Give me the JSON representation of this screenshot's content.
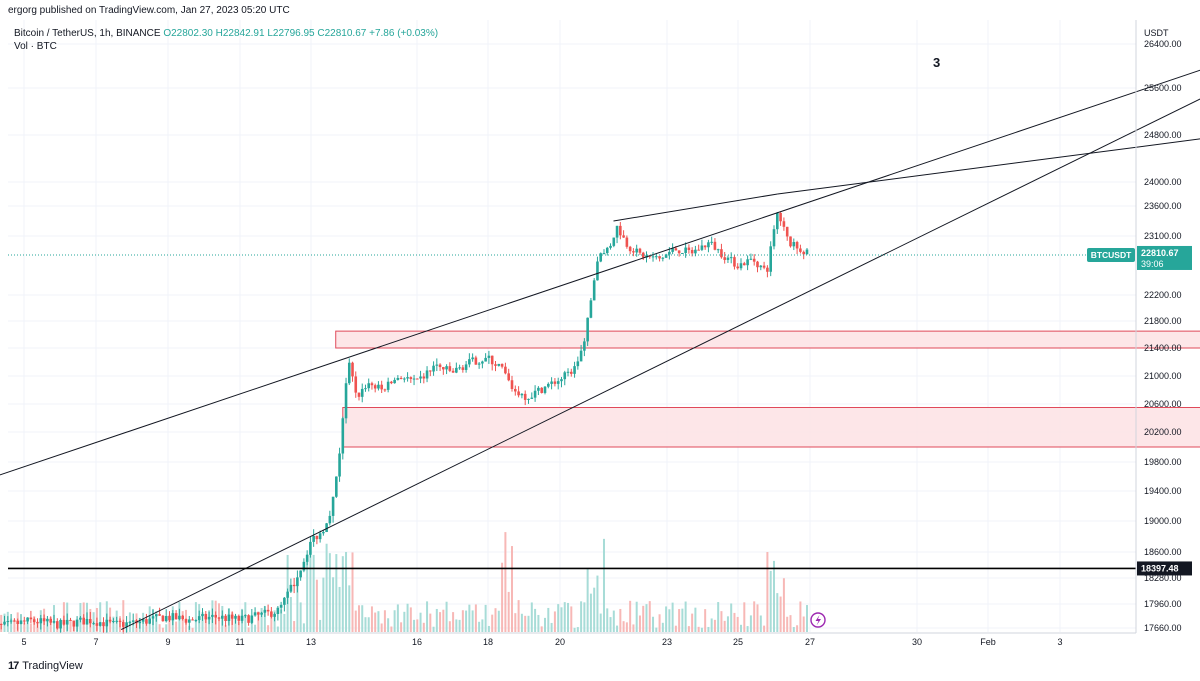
{
  "header": {
    "published": "ergorg published on TradingView.com, Jan 27, 2023 05:20 UTC",
    "symbol": "Bitcoin / TetherUS, 1h, BINANCE",
    "open": "O22802.30",
    "high": "H22842.91",
    "low": "L22796.95",
    "close": "C22810.67",
    "change": "+7.86 (+0.03%)",
    "volume_label": "Vol · BTC",
    "currency": "USDT"
  },
  "annotations": {
    "wave_label": "3"
  },
  "footer": {
    "brand": "TradingView"
  },
  "colors": {
    "up": "#26a69a",
    "down": "#ef5350",
    "zone_fill": "#fde2e4",
    "zone_border": "#e0495a",
    "label_bg": "#26a69a",
    "hline": "#000000"
  },
  "chart_data": {
    "type": "candlestick",
    "symbol_tag": "BTCUSDT",
    "last_price": "22810.67",
    "countdown": "39:06",
    "support_label": "18397.48",
    "y_ticks": [
      "26400.00",
      "25600.00",
      "24800.00",
      "24000.00",
      "23600.00",
      "23100.00",
      "22200.00",
      "21800.00",
      "21400.00",
      "21000.00",
      "20600.00",
      "20200.00",
      "19800.00",
      "19400.00",
      "19000.00",
      "18600.00",
      "18280.00",
      "17960.00",
      "17660.00"
    ],
    "x_ticks": [
      "5",
      "7",
      "9",
      "11",
      "13",
      "16",
      "18",
      "20",
      "23",
      "25",
      "27",
      "30",
      "Feb",
      "3"
    ],
    "price_path": [
      {
        "x": 4.0,
        "p": 17650
      },
      {
        "x": 4.6,
        "p": 17700
      },
      {
        "x": 5.2,
        "p": 17750
      },
      {
        "x": 6.0,
        "p": 17700
      },
      {
        "x": 6.8,
        "p": 17760
      },
      {
        "x": 7.5,
        "p": 17700
      },
      {
        "x": 8.2,
        "p": 17730
      },
      {
        "x": 8.9,
        "p": 17800
      },
      {
        "x": 9.6,
        "p": 17760
      },
      {
        "x": 10.3,
        "p": 17800
      },
      {
        "x": 11.0,
        "p": 17760
      },
      {
        "x": 11.6,
        "p": 17820
      },
      {
        "x": 12.1,
        "p": 17880
      },
      {
        "x": 12.5,
        "p": 18200
      },
      {
        "x": 12.8,
        "p": 18500
      },
      {
        "x": 13.0,
        "p": 18750
      },
      {
        "x": 13.3,
        "p": 18850
      },
      {
        "x": 13.6,
        "p": 19200
      },
      {
        "x": 13.8,
        "p": 19900
      },
      {
        "x": 14.05,
        "p": 21200
      },
      {
        "x": 14.3,
        "p": 20700
      },
      {
        "x": 14.6,
        "p": 20900
      },
      {
        "x": 15.0,
        "p": 20800
      },
      {
        "x": 15.5,
        "p": 21000
      },
      {
        "x": 16.0,
        "p": 20900
      },
      {
        "x": 16.5,
        "p": 21150
      },
      {
        "x": 17.0,
        "p": 21050
      },
      {
        "x": 17.5,
        "p": 21200
      },
      {
        "x": 18.0,
        "p": 21250
      },
      {
        "x": 18.4,
        "p": 21100
      },
      {
        "x": 18.7,
        "p": 20800
      },
      {
        "x": 19.1,
        "p": 20700
      },
      {
        "x": 19.6,
        "p": 20850
      },
      {
        "x": 20.0,
        "p": 20950
      },
      {
        "x": 20.4,
        "p": 21100
      },
      {
        "x": 20.7,
        "p": 21500
      },
      {
        "x": 20.9,
        "p": 22300
      },
      {
        "x": 21.1,
        "p": 22800
      },
      {
        "x": 21.4,
        "p": 22950
      },
      {
        "x": 21.6,
        "p": 23250
      },
      {
        "x": 21.9,
        "p": 22950
      },
      {
        "x": 22.3,
        "p": 22800
      },
      {
        "x": 22.8,
        "p": 22750
      },
      {
        "x": 23.2,
        "p": 22900
      },
      {
        "x": 23.7,
        "p": 22850
      },
      {
        "x": 24.2,
        "p": 23000
      },
      {
        "x": 24.6,
        "p": 22800
      },
      {
        "x": 25.0,
        "p": 22650
      },
      {
        "x": 25.4,
        "p": 22750
      },
      {
        "x": 25.8,
        "p": 22550
      },
      {
        "x": 26.1,
        "p": 23500
      },
      {
        "x": 26.4,
        "p": 23000
      },
      {
        "x": 26.7,
        "p": 22900
      },
      {
        "x": 27.0,
        "p": 22810
      }
    ],
    "zones": [
      {
        "x0": 13.7,
        "x1": 39.0,
        "top": 21650,
        "bottom": 21400
      },
      {
        "x0": 13.9,
        "x1": 39.3,
        "top": 20550,
        "bottom": 20000
      }
    ],
    "trendlines": [
      {
        "x0": 3.9,
        "p0": 19550,
        "x1": 39.6,
        "p1": 26300
      },
      {
        "x0": 7.7,
        "p0": 17640,
        "x1": 39.6,
        "p1": 25950
      },
      {
        "x0": 21.5,
        "p0": 23350,
        "x1": 26.1,
        "p1": 23800
      },
      {
        "x0": 26.1,
        "p0": 23800,
        "x1": 39.6,
        "p1": 24870
      }
    ],
    "support_level": 18397.48,
    "current_level": 22810.67
  }
}
